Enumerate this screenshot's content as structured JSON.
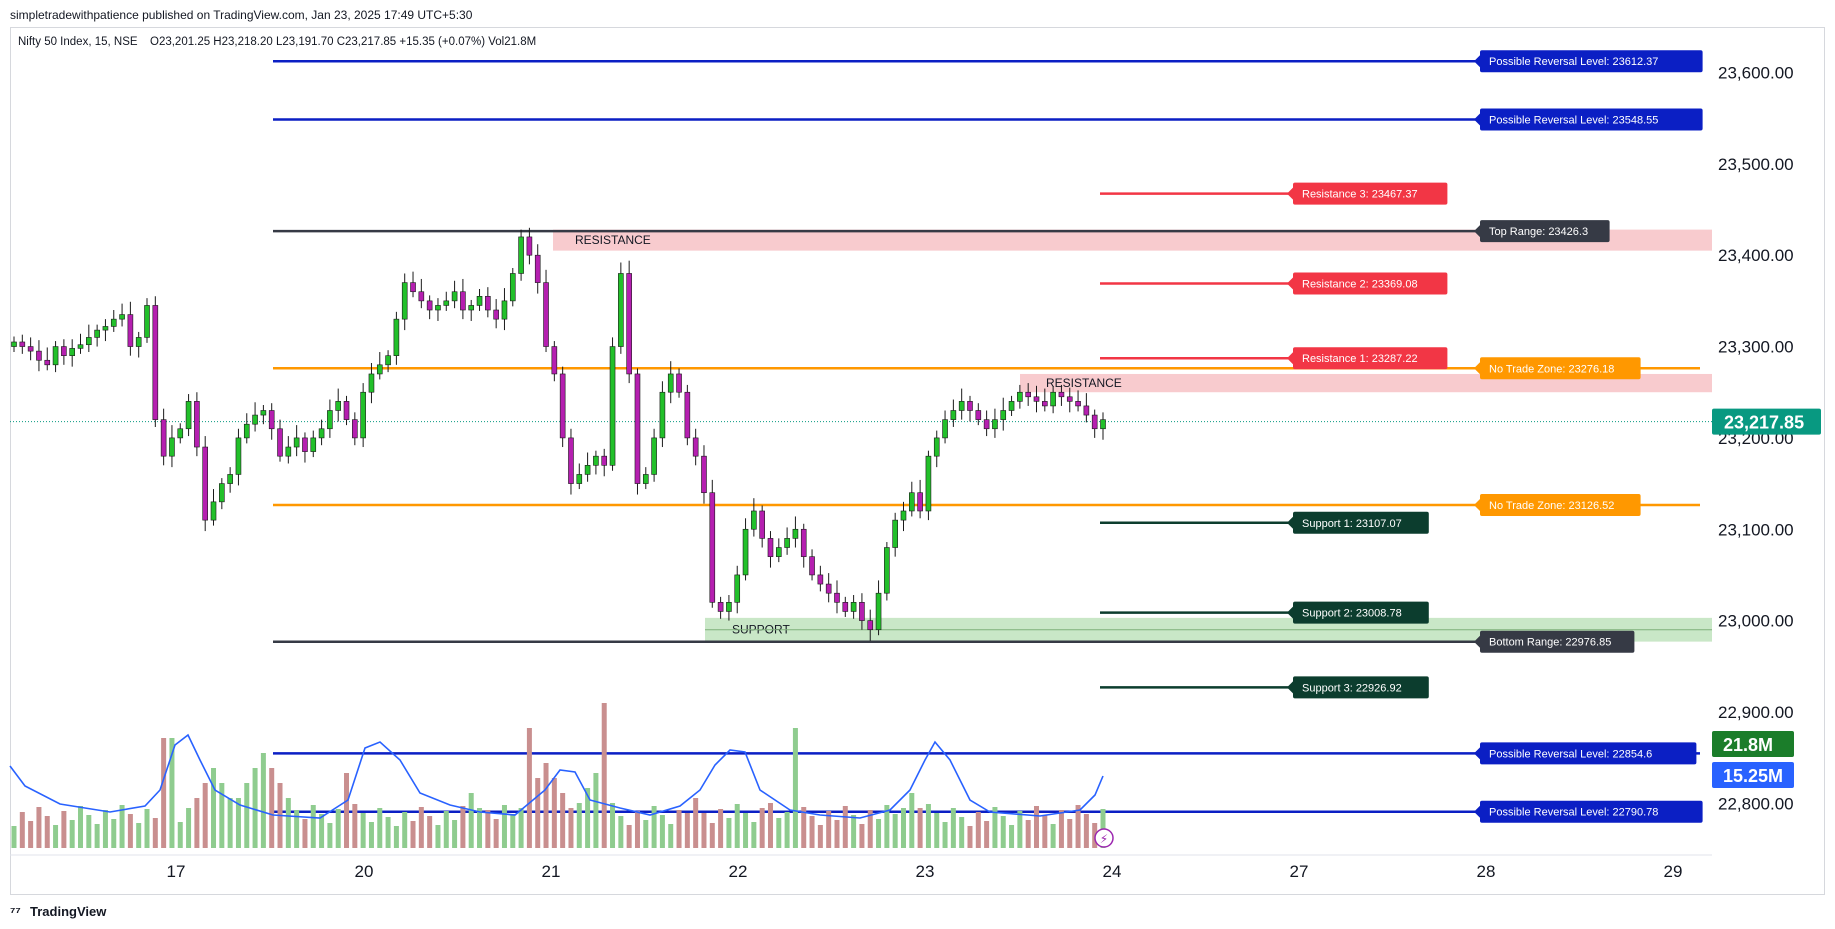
{
  "header": {
    "publisher_line": "simpletradewithpatience published on TradingView.com, Jan 23, 2025 17:49 UTC+5:30"
  },
  "footer": {
    "brand": "TradingView"
  },
  "chart_data": {
    "type": "candlestick",
    "title": "Nifty 50 Index, 15, NSE",
    "ohlc_text": "O23,201.25 H23,218.20 L23,191.70 C23,217.85 +15.35 (+0.07%) Vol21.8M",
    "ylim": [
      22700,
      23700
    ],
    "y_ticks": [
      "23,600.00",
      "23,500.00",
      "23,400.00",
      "23,300.00",
      "23,200.00",
      "23,100.00",
      "23,000.00",
      "22,900.00",
      "22,800.00"
    ],
    "y_tick_values": [
      23600,
      23500,
      23400,
      23300,
      23200,
      23100,
      23000,
      22900,
      22800
    ],
    "x_ticks": [
      "17",
      "20",
      "21",
      "22",
      "23",
      "24",
      "27",
      "28",
      "29"
    ],
    "current_price": {
      "value": 23217.85,
      "label": "23,217.85",
      "color": "#089981"
    },
    "volume_labels": [
      {
        "label": "21.8M",
        "color": "#1b7d2a"
      },
      {
        "label": "15.25M",
        "color": "#2962ff"
      }
    ],
    "levels": [
      {
        "label": "Possible Reversal Level: 23612.37",
        "value": 23612.37,
        "color": "#0b1fc4"
      },
      {
        "label": "Possible Reversal Level: 23548.55",
        "value": 23548.55,
        "color": "#0b1fc4"
      },
      {
        "label": "Resistance 3: 23467.37",
        "value": 23467.37,
        "color": "#f23645"
      },
      {
        "label": "Top Range: 23426.3",
        "value": 23426.3,
        "color": "#363a45"
      },
      {
        "label": "Resistance 2: 23369.08",
        "value": 23369.08,
        "color": "#f23645"
      },
      {
        "label": "Resistance 1: 23287.22",
        "value": 23287.22,
        "color": "#f23645"
      },
      {
        "label": "No Trade Zone: 23276.18",
        "value": 23276.18,
        "color": "#ff9800"
      },
      {
        "label": "No Trade Zone: 23126.52",
        "value": 23126.52,
        "color": "#ff9800"
      },
      {
        "label": "Support 1: 23107.07",
        "value": 23107.07,
        "color": "#0c3d2e"
      },
      {
        "label": "Support 2: 23008.78",
        "value": 23008.78,
        "color": "#0c3d2e"
      },
      {
        "label": "Bottom Range: 22976.85",
        "value": 22976.85,
        "color": "#363a45"
      },
      {
        "label": "Support 3: 22926.92",
        "value": 22926.92,
        "color": "#0c3d2e"
      },
      {
        "label": "Possible Reversal Level: 22854.6",
        "value": 22854.6,
        "color": "#0b1fc4"
      },
      {
        "label": "Possible Reversal Level: 22790.78",
        "value": 22790.78,
        "color": "#0b1fc4"
      }
    ],
    "zones": [
      {
        "label": "RESISTANCE",
        "from": 23405,
        "to": 23428
      },
      {
        "label": "RESISTANCE",
        "from": 23250,
        "to": 23270
      },
      {
        "label": "SUPPORT",
        "from": 22977,
        "to": 23003
      }
    ],
    "colors": {
      "up": "#22c02a",
      "down": "#b51fb0",
      "vol_up": "#8fcc8f",
      "vol_down": "#c98f8f",
      "vol_ma": "#2962ff"
    }
  }
}
